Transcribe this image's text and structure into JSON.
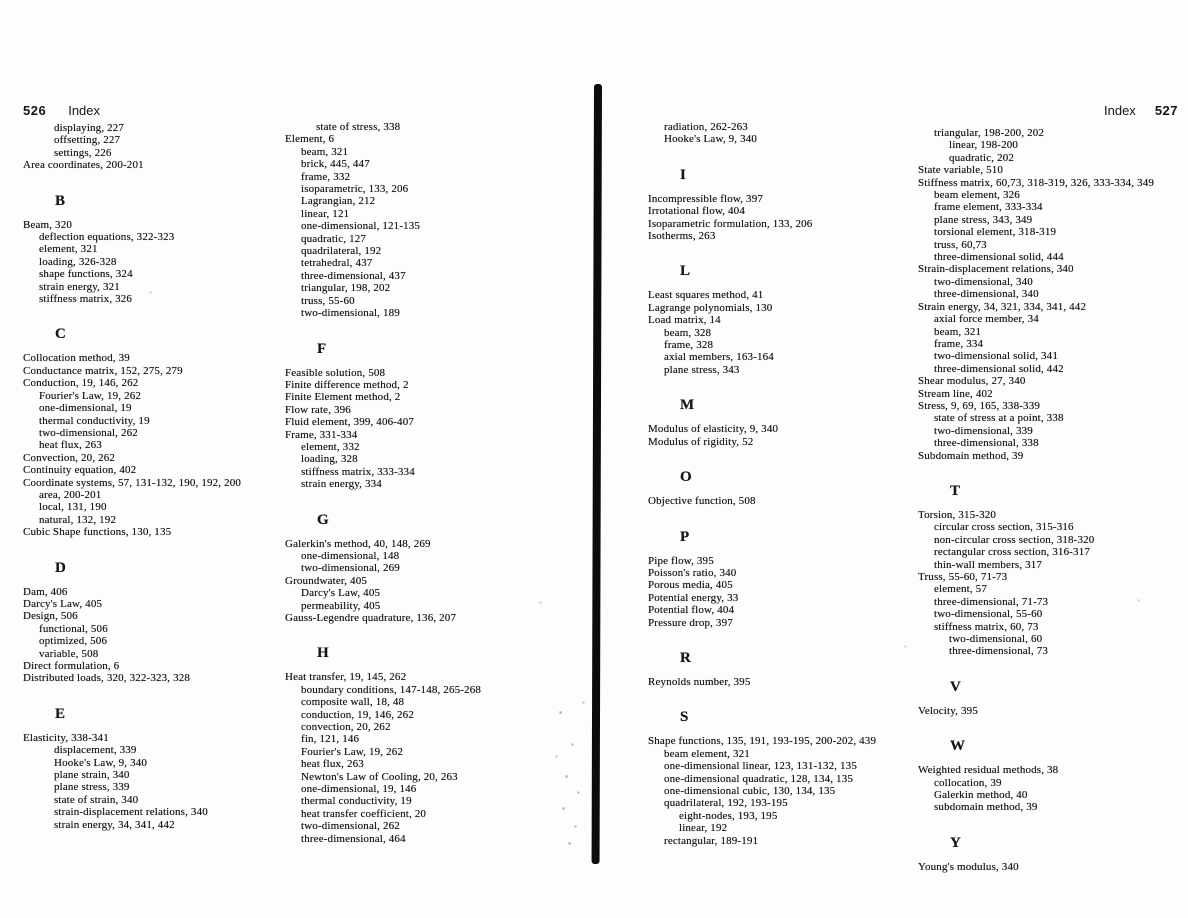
{
  "colors": {
    "paper": "#fdfdfc",
    "ink": "#161616",
    "divider": "#0c0c0c"
  },
  "pages": [
    {
      "header": {
        "page_number": "526",
        "label": "Index"
      },
      "columns": [
        {
          "items": [
            {
              "text": "displaying, 227",
              "indent": 2
            },
            {
              "text": "offsetting, 227",
              "indent": 2
            },
            {
              "text": "settings, 226",
              "indent": 2
            },
            {
              "text": "Area coordinates, 200-201",
              "indent": 0
            },
            {
              "letter": "B"
            },
            {
              "text": "Beam, 320",
              "indent": 0
            },
            {
              "text": "deflection equations, 322-323",
              "indent": 1
            },
            {
              "text": "element, 321",
              "indent": 1
            },
            {
              "text": "loading, 326-328",
              "indent": 1
            },
            {
              "text": "shape functions, 324",
              "indent": 1
            },
            {
              "text": "strain energy, 321",
              "indent": 1
            },
            {
              "text": "stiffness matrix, 326",
              "indent": 1
            },
            {
              "letter": "C"
            },
            {
              "text": "Collocation method, 39",
              "indent": 0
            },
            {
              "text": "Conductance matrix, 152, 275, 279",
              "indent": 0
            },
            {
              "text": "Conduction, 19, 146, 262",
              "indent": 0
            },
            {
              "text": "Fourier's Law, 19, 262",
              "indent": 1
            },
            {
              "text": "one-dimensional, 19",
              "indent": 1
            },
            {
              "text": "thermal conductivity, 19",
              "indent": 1
            },
            {
              "text": "two-dimensional, 262",
              "indent": 1
            },
            {
              "text": "heat flux, 263",
              "indent": 1
            },
            {
              "text": "Convection, 20, 262",
              "indent": 0
            },
            {
              "text": "Continuity equation, 402",
              "indent": 0
            },
            {
              "text": "Coordinate systems, 57, 131-132, 190, 192, 200",
              "indent": 0
            },
            {
              "text": "area, 200-201",
              "indent": 1
            },
            {
              "text": "local, 131, 190",
              "indent": 1
            },
            {
              "text": "natural, 132, 192",
              "indent": 1
            },
            {
              "text": "Cubic Shape functions, 130, 135",
              "indent": 0
            },
            {
              "letter": "D"
            },
            {
              "text": "Dam, 406",
              "indent": 0
            },
            {
              "text": "Darcy's Law, 405",
              "indent": 0
            },
            {
              "text": "Design, 506",
              "indent": 0
            },
            {
              "text": "functional, 506",
              "indent": 1
            },
            {
              "text": "optimized, 506",
              "indent": 1
            },
            {
              "text": "variable, 508",
              "indent": 1
            },
            {
              "text": "Direct formulation, 6",
              "indent": 0
            },
            {
              "text": "Distributed loads, 320, 322-323, 328",
              "indent": 0
            },
            {
              "letter": "E"
            },
            {
              "text": "Elasticity, 338-341",
              "indent": 0
            },
            {
              "text": "displacement, 339",
              "indent": 2
            },
            {
              "text": "Hooke's Law, 9, 340",
              "indent": 2
            },
            {
              "text": "plane strain, 340",
              "indent": 2
            },
            {
              "text": "plane stress, 339",
              "indent": 2
            },
            {
              "text": "state of strain, 340",
              "indent": 2
            },
            {
              "text": "strain-displacement relations, 340",
              "indent": 2
            },
            {
              "text": "strain energy, 34, 341, 442",
              "indent": 2
            }
          ]
        },
        {
          "items": [
            {
              "text": "state of stress, 338",
              "indent": 2
            },
            {
              "text": "Element, 6",
              "indent": 0
            },
            {
              "text": "beam, 321",
              "indent": 1
            },
            {
              "text": "brick, 445, 447",
              "indent": 1
            },
            {
              "text": "frame, 332",
              "indent": 1
            },
            {
              "text": "isoparametric, 133, 206",
              "indent": 1
            },
            {
              "text": "Lagrangian, 212",
              "indent": 1
            },
            {
              "text": "linear, 121",
              "indent": 1
            },
            {
              "text": "one-dimensional, 121-135",
              "indent": 1
            },
            {
              "text": "quadratic, 127",
              "indent": 1
            },
            {
              "text": "quadrilateral, 192",
              "indent": 1
            },
            {
              "text": "tetrahedral, 437",
              "indent": 1
            },
            {
              "text": "three-dimensional, 437",
              "indent": 1
            },
            {
              "text": "triangular, 198, 202",
              "indent": 1
            },
            {
              "text": "truss, 55-60",
              "indent": 1
            },
            {
              "text": "two-dimensional, 189",
              "indent": 1
            },
            {
              "letter": "F"
            },
            {
              "text": "Feasible solution, 508",
              "indent": 0
            },
            {
              "text": "Finite difference method, 2",
              "indent": 0
            },
            {
              "text": "Finite Element method, 2",
              "indent": 0
            },
            {
              "text": "Flow rate, 396",
              "indent": 0
            },
            {
              "text": "Fluid element, 399, 406-407",
              "indent": 0
            },
            {
              "text": "Frame, 331-334",
              "indent": 0
            },
            {
              "text": "element, 332",
              "indent": 1
            },
            {
              "text": "loading, 328",
              "indent": 1
            },
            {
              "text": "stiffness matrix, 333-334",
              "indent": 1
            },
            {
              "text": "strain energy, 334",
              "indent": 1
            },
            {
              "letter": "G"
            },
            {
              "text": "Galerkin's method, 40, 148, 269",
              "indent": 0
            },
            {
              "text": "one-dimensional, 148",
              "indent": 1
            },
            {
              "text": "two-dimensional, 269",
              "indent": 1
            },
            {
              "text": "Groundwater, 405",
              "indent": 0
            },
            {
              "text": "Darcy's Law, 405",
              "indent": 1
            },
            {
              "text": "permeability, 405",
              "indent": 1
            },
            {
              "text": "Gauss-Legendre quadrature, 136, 207",
              "indent": 0
            },
            {
              "letter": "H"
            },
            {
              "text": "Heat transfer, 19, 145, 262",
              "indent": 0
            },
            {
              "text": "boundary conditions, 147-148, 265-268",
              "indent": 1
            },
            {
              "text": "composite wall, 18, 48",
              "indent": 1
            },
            {
              "text": "conduction, 19, 146, 262",
              "indent": 1
            },
            {
              "text": "convection, 20, 262",
              "indent": 1
            },
            {
              "text": "fin, 121, 146",
              "indent": 1
            },
            {
              "text": "Fourier's Law, 19, 262",
              "indent": 1
            },
            {
              "text": "heat flux, 263",
              "indent": 1
            },
            {
              "text": "Newton's Law of Cooling, 20, 263",
              "indent": 1
            },
            {
              "text": "one-dimensional, 19, 146",
              "indent": 1
            },
            {
              "text": "thermal conductivity, 19",
              "indent": 1
            },
            {
              "text": "heat transfer coefficient, 20",
              "indent": 1
            },
            {
              "text": "two-dimensional, 262",
              "indent": 1
            },
            {
              "text": "three-dimensional, 464",
              "indent": 1
            }
          ]
        }
      ]
    },
    {
      "header": {
        "label": "Index",
        "page_number": "527"
      },
      "columns": [
        {
          "items": [
            {
              "text": "radiation, 262-263",
              "indent": 1
            },
            {
              "text": "Hooke's Law, 9, 340",
              "indent": 1
            },
            {
              "letter": "I"
            },
            {
              "text": "Incompressible flow, 397",
              "indent": 0
            },
            {
              "text": "Irrotational flow, 404",
              "indent": 0
            },
            {
              "text": "Isoparametric formulation, 133, 206",
              "indent": 0
            },
            {
              "text": "Isotherms, 263",
              "indent": 0
            },
            {
              "letter": "L"
            },
            {
              "text": "Least squares method, 41",
              "indent": 0
            },
            {
              "text": "Lagrange polynomials, 130",
              "indent": 0
            },
            {
              "text": "Load matrix, 14",
              "indent": 0
            },
            {
              "text": "beam, 328",
              "indent": 1
            },
            {
              "text": "frame, 328",
              "indent": 1
            },
            {
              "text": "axial members, 163-164",
              "indent": 1
            },
            {
              "text": "plane stress, 343",
              "indent": 1
            },
            {
              "letter": "M"
            },
            {
              "text": "Modulus of elasticity, 9, 340",
              "indent": 0
            },
            {
              "text": "Modulus of rigidity, 52",
              "indent": 0
            },
            {
              "letter": "O"
            },
            {
              "text": "Objective function, 508",
              "indent": 0
            },
            {
              "letter": "P"
            },
            {
              "text": "Pipe flow, 395",
              "indent": 0
            },
            {
              "text": "Poisson's ratio, 340",
              "indent": 0
            },
            {
              "text": "Porous media, 405",
              "indent": 0
            },
            {
              "text": "Potential energy, 33",
              "indent": 0
            },
            {
              "text": "Potential flow, 404",
              "indent": 0
            },
            {
              "text": "Pressure drop, 397",
              "indent": 0
            },
            {
              "letter": "R"
            },
            {
              "text": "Reynolds number, 395",
              "indent": 0
            },
            {
              "letter": "S"
            },
            {
              "text": "Shape functions, 135, 191, 193-195, 200-202, 439",
              "indent": 0
            },
            {
              "text": "beam element, 321",
              "indent": 1
            },
            {
              "text": "one-dimensional linear, 123, 131-132, 135",
              "indent": 1
            },
            {
              "text": "one-dimensional quadratic, 128, 134, 135",
              "indent": 1
            },
            {
              "text": "one-dimensional cubic, 130, 134, 135",
              "indent": 1
            },
            {
              "text": "quadrilateral, 192, 193-195",
              "indent": 1
            },
            {
              "text": "eight-nodes, 193, 195",
              "indent": 2
            },
            {
              "text": "linear, 192",
              "indent": 2
            },
            {
              "text": "rectangular, 189-191",
              "indent": 1
            }
          ]
        },
        {
          "items": [
            {
              "text": "triangular, 198-200, 202",
              "indent": 1
            },
            {
              "text": "linear, 198-200",
              "indent": 2
            },
            {
              "text": "quadratic, 202",
              "indent": 2
            },
            {
              "text": "State variable, 510",
              "indent": 0
            },
            {
              "text": "Stiffness matrix, 60,73, 318-319, 326, 333-334, 349",
              "indent": 0
            },
            {
              "text": "beam element, 326",
              "indent": 1
            },
            {
              "text": "frame element, 333-334",
              "indent": 1
            },
            {
              "text": "plane stress, 343, 349",
              "indent": 1
            },
            {
              "text": "torsional element, 318-319",
              "indent": 1
            },
            {
              "text": "truss, 60,73",
              "indent": 1
            },
            {
              "text": "three-dimensional solid, 444",
              "indent": 1
            },
            {
              "text": "Strain-displacement relations, 340",
              "indent": 0
            },
            {
              "text": "two-dimensional, 340",
              "indent": 1
            },
            {
              "text": "three-dimensional, 340",
              "indent": 1
            },
            {
              "text": "Strain energy, 34, 321, 334, 341, 442",
              "indent": 0
            },
            {
              "text": "axial force member, 34",
              "indent": 1
            },
            {
              "text": "beam, 321",
              "indent": 1
            },
            {
              "text": "frame, 334",
              "indent": 1
            },
            {
              "text": "two-dimensional solid, 341",
              "indent": 1
            },
            {
              "text": "three-dimensional solid, 442",
              "indent": 1
            },
            {
              "text": "Shear modulus, 27, 340",
              "indent": 0
            },
            {
              "text": "Stream line, 402",
              "indent": 0
            },
            {
              "text": "Stress, 9, 69, 165, 338-339",
              "indent": 0
            },
            {
              "text": "state of stress at a point, 338",
              "indent": 1
            },
            {
              "text": "two-dimensional, 339",
              "indent": 1
            },
            {
              "text": "three-dimensional, 338",
              "indent": 1
            },
            {
              "text": "Subdomain method, 39",
              "indent": 0
            },
            {
              "letter": "T"
            },
            {
              "text": "Torsion, 315-320",
              "indent": 0
            },
            {
              "text": "circular cross section, 315-316",
              "indent": 1
            },
            {
              "text": "non-circular cross section, 318-320",
              "indent": 1
            },
            {
              "text": "rectangular cross section, 316-317",
              "indent": 1
            },
            {
              "text": "thin-wall members, 317",
              "indent": 1
            },
            {
              "text": "Truss, 55-60, 71-73",
              "indent": 0
            },
            {
              "text": "element, 57",
              "indent": 1
            },
            {
              "text": "three-dimensional, 71-73",
              "indent": 1
            },
            {
              "text": "two-dimensional, 55-60",
              "indent": 1
            },
            {
              "text": "stiffness matrix, 60, 73",
              "indent": 1
            },
            {
              "text": "two-dimensional, 60",
              "indent": 2
            },
            {
              "text": "three-dimensional, 73",
              "indent": 2
            },
            {
              "letter": "V"
            },
            {
              "text": "Velocity, 395",
              "indent": 0
            },
            {
              "letter": "W"
            },
            {
              "text": "Weighted residual methods, 38",
              "indent": 0
            },
            {
              "text": "collocation, 39",
              "indent": 1
            },
            {
              "text": "Galerkin method, 40",
              "indent": 1
            },
            {
              "text": "subdomain method, 39",
              "indent": 1
            },
            {
              "letter": "Y"
            },
            {
              "text": "Young's modulus, 340",
              "indent": 0
            }
          ]
        }
      ]
    }
  ]
}
